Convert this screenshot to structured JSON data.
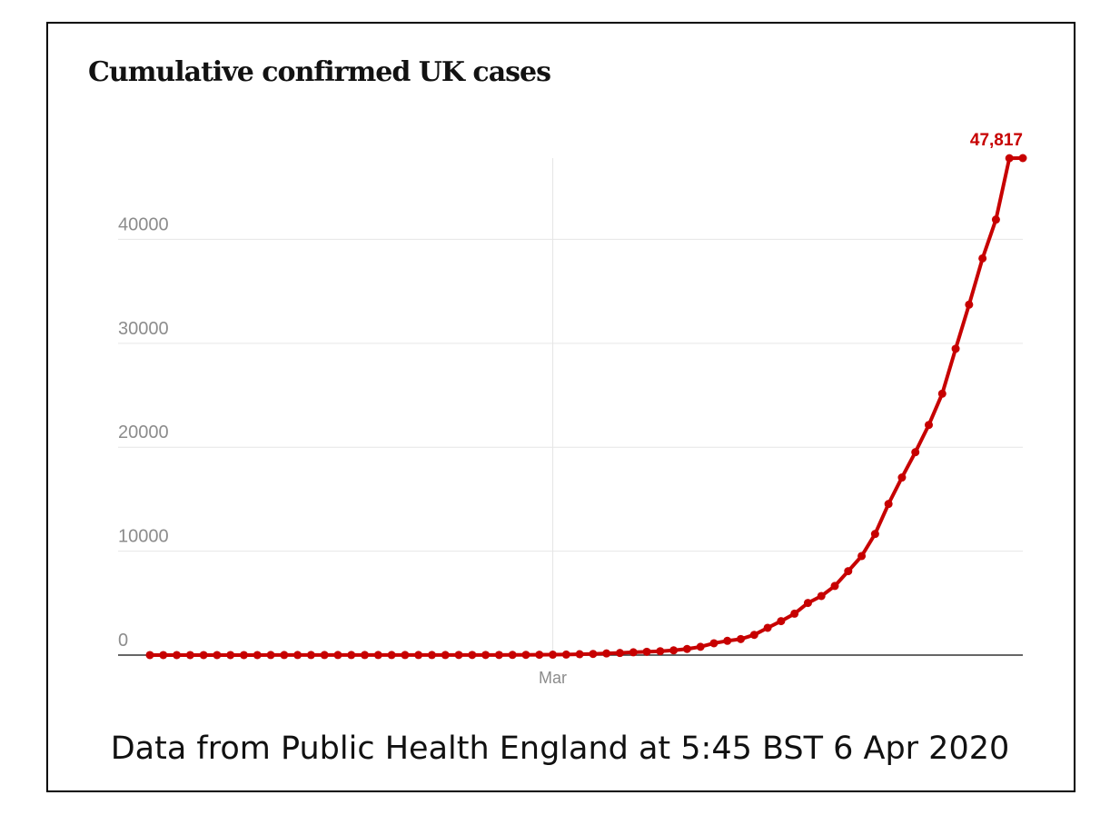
{
  "chart_data": {
    "type": "line",
    "title": "Cumulative confirmed UK cases",
    "xlabel": "",
    "ylabel": "",
    "x_start_date": "2020-01-31",
    "x_ticks": [
      {
        "date": "2020-03-01",
        "label": "Mar"
      }
    ],
    "y_ticks": [
      0,
      10000,
      20000,
      30000,
      40000
    ],
    "ylim": [
      0,
      47817
    ],
    "grid": "horizontal",
    "color": "#c70000",
    "last_value_label": "47,817",
    "series": [
      {
        "values": [
          2,
          2,
          2,
          2,
          2,
          2,
          2,
          2,
          3,
          8,
          8,
          9,
          9,
          9,
          9,
          9,
          9,
          9,
          9,
          9,
          9,
          9,
          9,
          13,
          13,
          13,
          15,
          20,
          23,
          36,
          40,
          51,
          85,
          114,
          160,
          206,
          271,
          321,
          373,
          456,
          590,
          798,
          1140,
          1372,
          1543,
          1950,
          2626,
          3269,
          3983,
          5018,
          5683,
          6650,
          8077,
          9529,
          11658,
          14543,
          17089,
          19522,
          22141,
          25150,
          29474,
          33718,
          38168,
          41903,
          47806,
          47817
        ]
      }
    ]
  },
  "caption": "Data from Public Health England at 5:45 BST 6 Apr 2020"
}
